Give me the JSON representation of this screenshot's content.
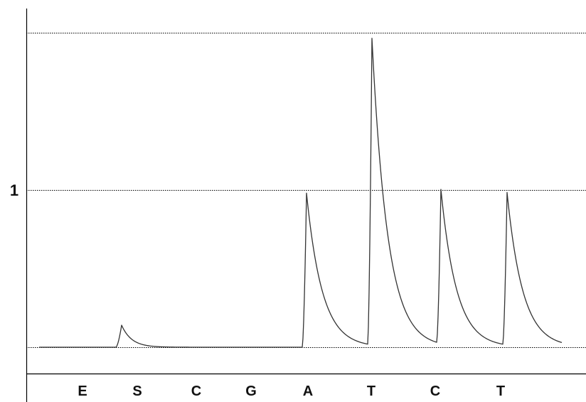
{
  "chart_data": {
    "type": "line",
    "title": "",
    "xlabel": "",
    "ylabel": "",
    "categories": [
      "E",
      "S",
      "C",
      "G",
      "A",
      "T",
      "C",
      "T"
    ],
    "y_ticks": [
      {
        "value": 1,
        "label": "1"
      }
    ],
    "ylim": [
      0,
      2
    ],
    "gridlines": [
      0,
      1,
      2
    ],
    "peaks": [
      {
        "category": "E",
        "height": 0
      },
      {
        "category": "S",
        "height": 0.14
      },
      {
        "category": "C",
        "height": 0
      },
      {
        "category": "G",
        "height": 0
      },
      {
        "category": "A",
        "height": 0.98
      },
      {
        "category": "T",
        "height": 1.95
      },
      {
        "category": "C",
        "height": 0.98
      },
      {
        "category": "T",
        "height": 0.97
      }
    ],
    "colors": {
      "trace": "#333333",
      "axis": "#000000",
      "grid": "#000000"
    }
  }
}
